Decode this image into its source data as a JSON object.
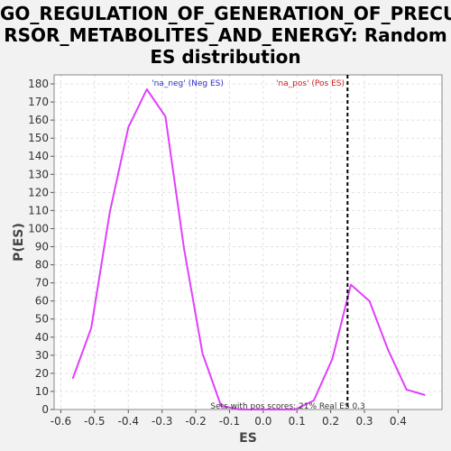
{
  "title_lines": [
    "GO_REGULATION_OF_GENERATION_OF_PRECU",
    "RSOR_METABOLITES_AND_ENERGY: Random",
    "ES distribution"
  ],
  "colors": {
    "line": "#e040fb",
    "neg_label": "#3030cc",
    "pos_label": "#cc2020",
    "real_es_marker": "#000000",
    "plot_bg": "#ffffff",
    "grid": "#e0e0e0"
  },
  "chart_data": {
    "type": "line",
    "title": "GO_REGULATION_OF_GENERATION_OF_PRECURSOR_METABOLITES_AND_ENERGY: Random ES distribution",
    "xlabel": "ES",
    "ylabel": "P(ES)",
    "xlim": [
      -0.62,
      0.53
    ],
    "ylim": [
      0,
      185
    ],
    "x_ticks": [
      -0.6,
      -0.5,
      -0.4,
      -0.3,
      -0.2,
      -0.1,
      0.0,
      0.1,
      0.2,
      0.3,
      0.4
    ],
    "x_tick_labels": [
      "-0.6",
      "-0.5",
      "-0.4",
      "-0.3",
      "-0.2",
      "-0.1",
      "0.0",
      "0.1",
      "0.2",
      "0.3",
      "0.4"
    ],
    "y_ticks": [
      0,
      10,
      20,
      30,
      40,
      50,
      60,
      70,
      80,
      90,
      100,
      110,
      120,
      130,
      140,
      150,
      160,
      170,
      180
    ],
    "grid": true,
    "series": [
      {
        "x": [
          -0.565,
          -0.51,
          -0.455,
          -0.4,
          -0.345,
          -0.29,
          -0.235,
          -0.18,
          -0.125,
          -0.07,
          -0.015,
          0.04,
          0.095,
          0.15,
          0.205,
          0.26,
          0.315,
          0.37,
          0.425,
          0.48
        ],
        "y": [
          17,
          45,
          109,
          156,
          177,
          162,
          89,
          31,
          2,
          0,
          0,
          0,
          0,
          5,
          28,
          69,
          60,
          33,
          11,
          8
        ]
      }
    ],
    "real_es": 0.25,
    "annotations": {
      "neg_label": "'na_neg' (Neg ES)",
      "pos_label": "'na_pos' (Pos ES)",
      "footer": "Sets with pos scores: 21%  Real ES 0.3"
    }
  }
}
